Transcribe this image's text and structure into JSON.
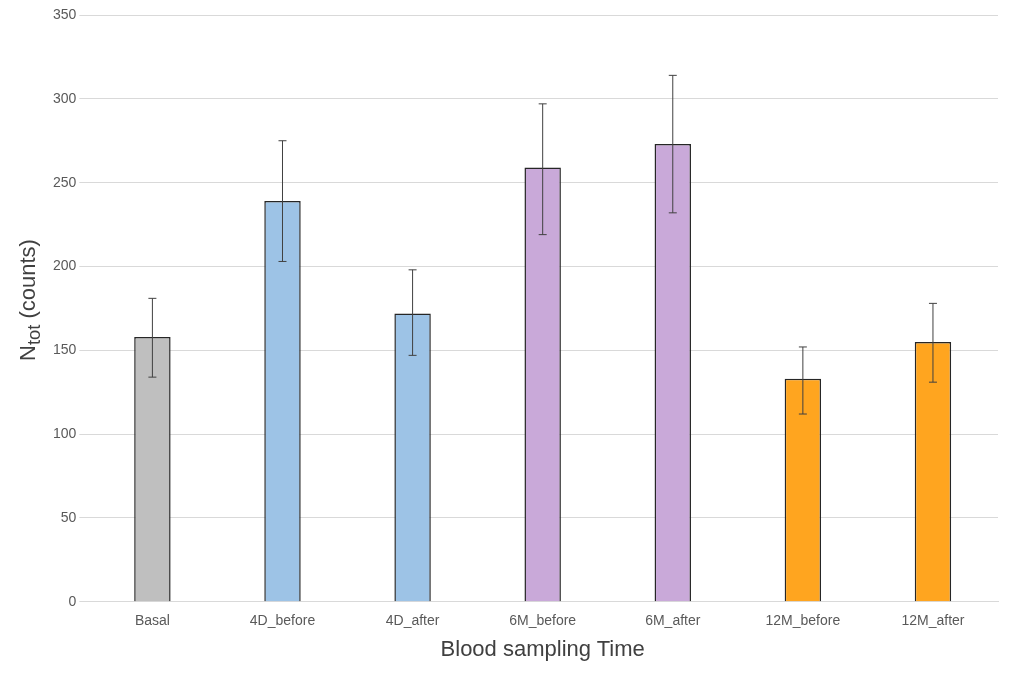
{
  "chart_data": {
    "type": "bar",
    "xlabel": "Blood sampling Time",
    "ylabel": "N$_{tot}$ (counts)",
    "categories": [
      "Basal",
      "4D_before",
      "4D_after",
      "6M_before",
      "6M_after",
      "12M_before",
      "12M_after"
    ],
    "values": [
      158,
      239,
      172,
      259,
      273,
      133,
      155
    ],
    "colors": [
      "#bfbfbf",
      "#9dc3e6",
      "#9dc3e6",
      "#c9a9d9",
      "#c9a9d9",
      "#ffa51f",
      "#ffa51f"
    ],
    "errors": [
      [
        134,
        181
      ],
      [
        203,
        275
      ],
      [
        147,
        198
      ],
      [
        219,
        297
      ],
      [
        232,
        314
      ],
      [
        112,
        152
      ],
      [
        131,
        178
      ]
    ],
    "ylim": [
      0,
      350
    ],
    "yticks": [
      0,
      50,
      100,
      150,
      200,
      250,
      300,
      350
    ],
    "grid": "y"
  }
}
